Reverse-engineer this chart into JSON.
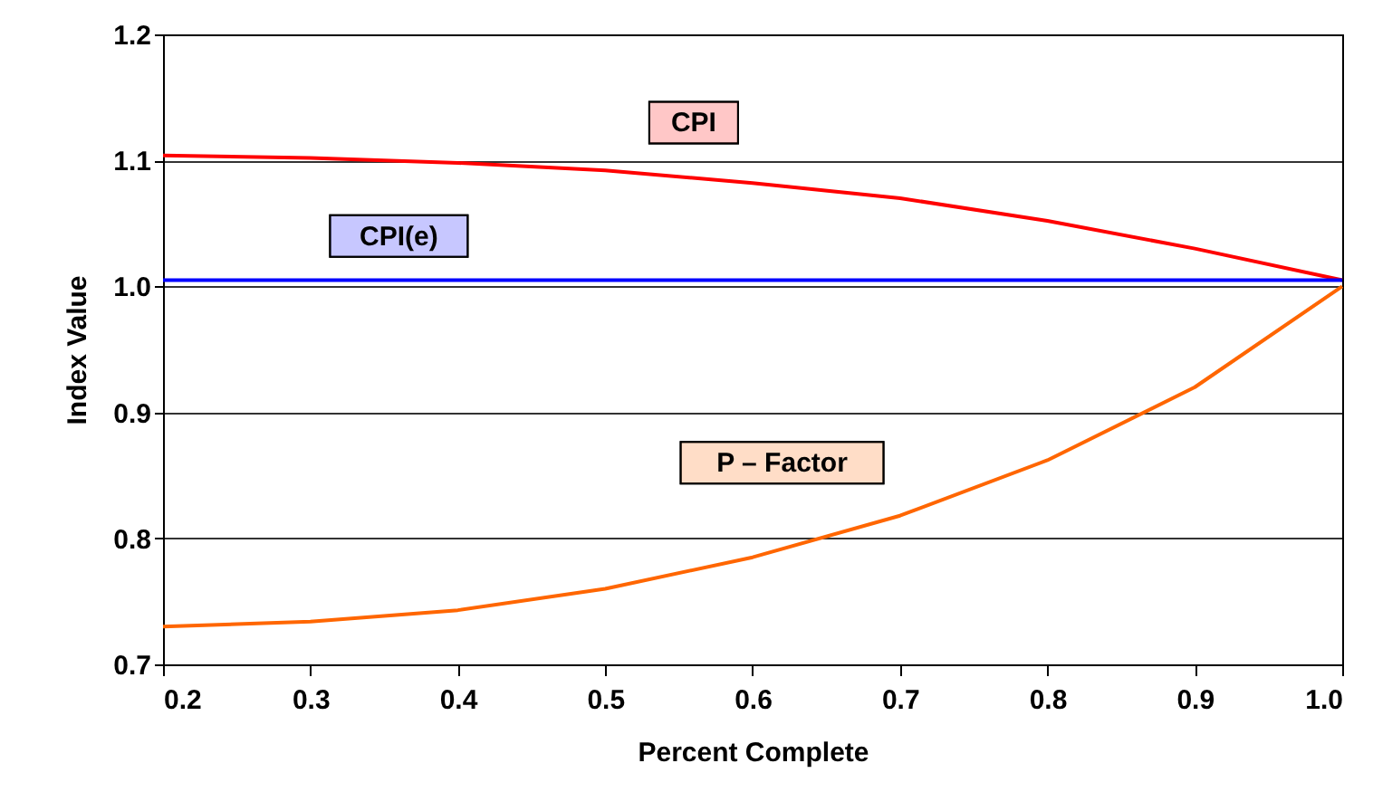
{
  "chart_data": {
    "type": "line",
    "xlabel": "Percent Complete",
    "ylabel": "Index Value",
    "x": [
      0.2,
      0.3,
      0.4,
      0.5,
      0.6,
      0.7,
      0.8,
      0.9,
      1.0
    ],
    "series": [
      {
        "name": "CPI",
        "color": "#ff0000",
        "values": [
          1.104,
          1.102,
          1.098,
          1.092,
          1.082,
          1.07,
          1.052,
          1.03,
          1.005
        ]
      },
      {
        "name": "CPI(e)",
        "color": "#0000ff",
        "values": [
          1.005,
          1.005,
          1.005,
          1.005,
          1.005,
          1.005,
          1.005,
          1.005,
          1.005
        ]
      },
      {
        "name": "P – Factor",
        "color": "#ff6600",
        "values": [
          0.73,
          0.734,
          0.743,
          0.76,
          0.785,
          0.818,
          0.862,
          0.92,
          1.0
        ]
      }
    ],
    "xlim": [
      0.2,
      1.0
    ],
    "xticks": [
      0.2,
      0.3,
      0.4,
      0.5,
      0.6,
      0.7,
      0.8,
      0.9,
      {
        "value": 1,
        "label": "1.0"
      }
    ],
    "ylim": [
      0.7,
      1.2
    ],
    "yticks": [
      0.7,
      0.8,
      0.9,
      {
        "value": 1,
        "label": "1.0"
      },
      1.1,
      1.2
    ],
    "grid": "y",
    "legend": false,
    "marker": "none",
    "line_style": "solid"
  }
}
